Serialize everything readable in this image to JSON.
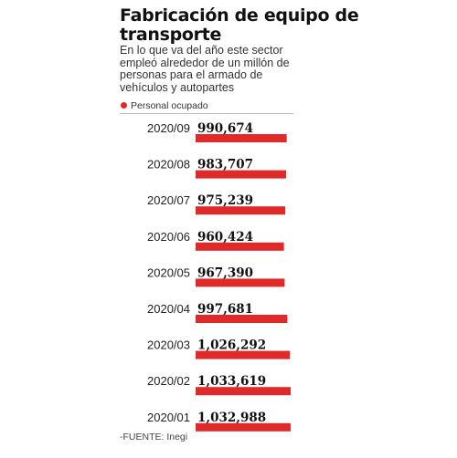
{
  "title": "Fabricación de equipo de transporte",
  "subtitle": "En lo que va del año este sector empleó alrededor de un millón de personas para el armado de vehículos y autopartes",
  "legend": {
    "label": "Personal ocupado",
    "color": "#e02a2a"
  },
  "source": "-FUENTE: Inegi",
  "chart_data": {
    "type": "bar",
    "orientation": "horizontal",
    "categories": [
      "2020/09",
      "2020/08",
      "2020/07",
      "2020/06",
      "2020/05",
      "2020/04",
      "2020/03",
      "2020/02",
      "2020/01"
    ],
    "series": [
      {
        "name": "Personal ocupado",
        "values": [
          990674,
          983707,
          975239,
          960424,
          967390,
          997681,
          1026292,
          1033619,
          1032988
        ],
        "labels": [
          "990,674",
          "983,707",
          "975,239",
          "960,424",
          "967,390",
          "997,681",
          "1,026,292",
          "1,033,619",
          "1,032,988"
        ],
        "color": "#e02a2a"
      }
    ],
    "xlim": [
      0,
      1033619
    ],
    "grid": false,
    "legend_position": "top-left"
  }
}
